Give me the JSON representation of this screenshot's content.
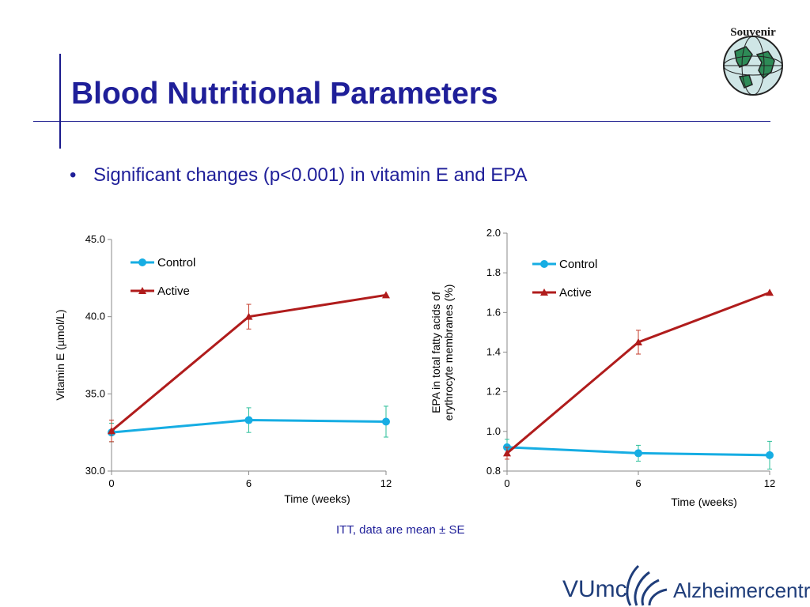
{
  "slide": {
    "title": "Blood Nutritional Parameters",
    "bullet": "Significant changes (p<0.001)  in vitamin E and EPA",
    "footnote": "ITT, data are mean ± SE",
    "badge_text": "Souvenir",
    "logo_left": "VUmc",
    "logo_right": "Alzheimercentrum"
  },
  "colors": {
    "title": "#1f1f99",
    "control": "#16ade3",
    "active": "#b01c1c",
    "control_err": "#2bbf9a",
    "active_err": "#c43b2a"
  },
  "chart_data": [
    {
      "type": "line",
      "x": [
        0,
        6,
        12
      ],
      "xticks": [
        "0",
        "6",
        "12"
      ],
      "xlabel": "Time (weeks)",
      "ylabel": "Vitamin E (µmol/L)",
      "ylim": [
        30.0,
        45.0
      ],
      "yticks": [
        "30.0",
        "35.0",
        "40.0",
        "45.0"
      ],
      "legend": "top-left",
      "series": [
        {
          "name": "Control",
          "values": [
            32.5,
            33.3,
            33.2
          ],
          "se": [
            0.6,
            0.8,
            1.0
          ]
        },
        {
          "name": "Active",
          "values": [
            32.6,
            40.0,
            41.4
          ],
          "se": [
            0.7,
            0.8,
            0.0
          ]
        }
      ]
    },
    {
      "type": "line",
      "x": [
        0,
        6,
        12
      ],
      "xticks": [
        "0",
        "6",
        "12"
      ],
      "xlabel": "Time (weeks)",
      "ylabel": [
        "EPA in total fatty acids of",
        "erythrocyte membranes (%)"
      ],
      "ylim": [
        0.8,
        2.0
      ],
      "yticks": [
        "0.8",
        "1.0",
        "1.2",
        "1.4",
        "1.6",
        "1.8",
        "2.0"
      ],
      "legend": "top-right",
      "series": [
        {
          "name": "Control",
          "values": [
            0.92,
            0.89,
            0.88
          ],
          "se": [
            0.04,
            0.04,
            0.07
          ]
        },
        {
          "name": "Active",
          "values": [
            0.89,
            1.45,
            1.7
          ],
          "se": [
            0.03,
            0.06,
            0.0
          ]
        }
      ]
    }
  ]
}
